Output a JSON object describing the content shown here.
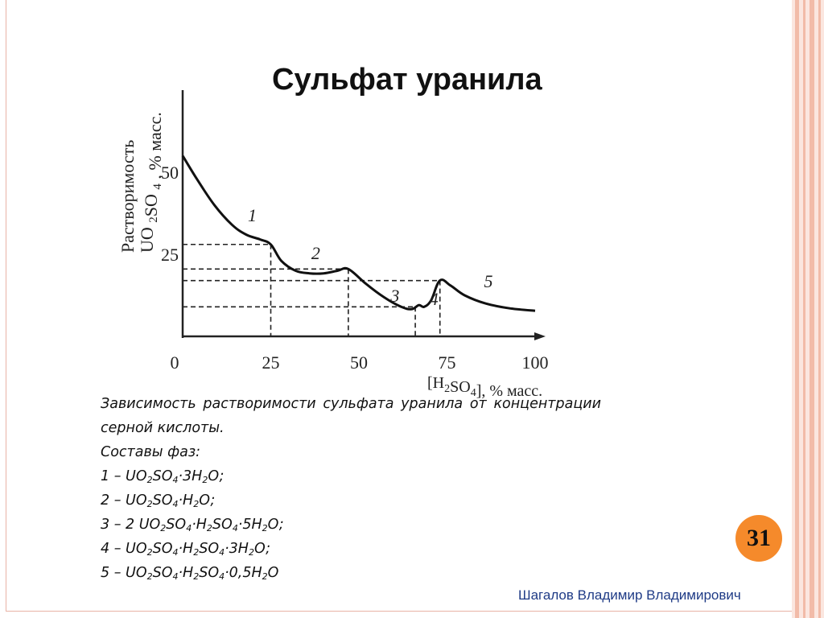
{
  "slide": {
    "title": "Сульфат уранила",
    "page_number": "31",
    "author": "Шагалов Владимир Владимирович"
  },
  "caption": {
    "description": "Зависимость растворимости сульфата уранила от концентрации серной кислоты.",
    "phases_heading": "Составы фаз:",
    "phases": [
      [
        {
          "t": "1 – UO"
        },
        {
          "s": "2"
        },
        {
          "t": "SO"
        },
        {
          "s": "4"
        },
        {
          "t": "·3H"
        },
        {
          "s": "2"
        },
        {
          "t": "O;"
        }
      ],
      [
        {
          "t": "2 – UO"
        },
        {
          "s": "2"
        },
        {
          "t": "SO"
        },
        {
          "s": "4"
        },
        {
          "t": "·H"
        },
        {
          "s": "2"
        },
        {
          "t": "O;"
        }
      ],
      [
        {
          "t": "3 – 2 UO"
        },
        {
          "s": "2"
        },
        {
          "t": "SO"
        },
        {
          "s": "4"
        },
        {
          "t": "·H"
        },
        {
          "s": "2"
        },
        {
          "t": "SO"
        },
        {
          "s": "4"
        },
        {
          "t": "·5H"
        },
        {
          "s": "2"
        },
        {
          "t": "O;"
        }
      ],
      [
        {
          "t": "4 – UO"
        },
        {
          "s": "2"
        },
        {
          "t": "SO"
        },
        {
          "s": "4"
        },
        {
          "t": "·H"
        },
        {
          "s": "2"
        },
        {
          "t": "SO"
        },
        {
          "s": "4"
        },
        {
          "t": "·3H"
        },
        {
          "s": "2"
        },
        {
          "t": "O;"
        }
      ],
      [
        {
          "t": "5 – UO"
        },
        {
          "s": "2"
        },
        {
          "t": "SO"
        },
        {
          "s": "4"
        },
        {
          "t": "·H"
        },
        {
          "s": "2"
        },
        {
          "t": "SO"
        },
        {
          "s": "4"
        },
        {
          "t": "·0,5H"
        },
        {
          "s": "2"
        },
        {
          "t": "O"
        }
      ]
    ]
  },
  "chart_data": {
    "type": "line",
    "xlabel": [
      {
        "t": "[H"
      },
      {
        "s": "2"
      },
      {
        "t": "SO"
      },
      {
        "s": "4"
      },
      {
        "t": "], % масс."
      }
    ],
    "ylabel_line1": "Растворимость",
    "ylabel_line2": [
      {
        "t": "UO "
      },
      {
        "s": "2"
      },
      {
        "t": "SO "
      },
      {
        "s": "4"
      },
      {
        "t": " , % масс."
      }
    ],
    "xlim": [
      0,
      105
    ],
    "ylim": [
      0,
      65
    ],
    "x_ticks": [
      "0",
      "25",
      "50",
      "75",
      "100"
    ],
    "x_tick_values": [
      0,
      25,
      50,
      75,
      100
    ],
    "y_ticks": [
      "25",
      "50"
    ],
    "y_tick_values": [
      25,
      50
    ],
    "curve": [
      {
        "x": 0,
        "y": 55
      },
      {
        "x": 4,
        "y": 48
      },
      {
        "x": 9,
        "y": 40
      },
      {
        "x": 14,
        "y": 34
      },
      {
        "x": 18,
        "y": 31
      },
      {
        "x": 22,
        "y": 29.5
      },
      {
        "x": 25,
        "y": 28
      },
      {
        "x": 28,
        "y": 23
      },
      {
        "x": 32,
        "y": 20
      },
      {
        "x": 36,
        "y": 19.2
      },
      {
        "x": 40,
        "y": 19.2
      },
      {
        "x": 44,
        "y": 20
      },
      {
        "x": 47,
        "y": 20.5
      },
      {
        "x": 52,
        "y": 16
      },
      {
        "x": 57,
        "y": 12
      },
      {
        "x": 62,
        "y": 9
      },
      {
        "x": 65,
        "y": 8.3
      },
      {
        "x": 67,
        "y": 9.5
      },
      {
        "x": 68.5,
        "y": 9
      },
      {
        "x": 70.5,
        "y": 11
      },
      {
        "x": 73,
        "y": 17
      },
      {
        "x": 76,
        "y": 15.5
      },
      {
        "x": 80,
        "y": 12.5
      },
      {
        "x": 86,
        "y": 10
      },
      {
        "x": 93,
        "y": 8.5
      },
      {
        "x": 100,
        "y": 7.8
      }
    ],
    "segment_labels": [
      {
        "label": "1",
        "x": 18.5,
        "y": 35
      },
      {
        "label": "2",
        "x": 36.5,
        "y": 23.5
      },
      {
        "label": "3",
        "x": 59,
        "y": 10.5
      },
      {
        "label": "4",
        "x": 70,
        "y": 9.5
      },
      {
        "label": "5",
        "x": 85.5,
        "y": 15
      }
    ],
    "guide_points": [
      {
        "x": 25,
        "y": 28
      },
      {
        "x": 47,
        "y": 20.5
      },
      {
        "x": 66,
        "y": 9
      },
      {
        "x": 73,
        "y": 17
      }
    ],
    "grid": false
  }
}
